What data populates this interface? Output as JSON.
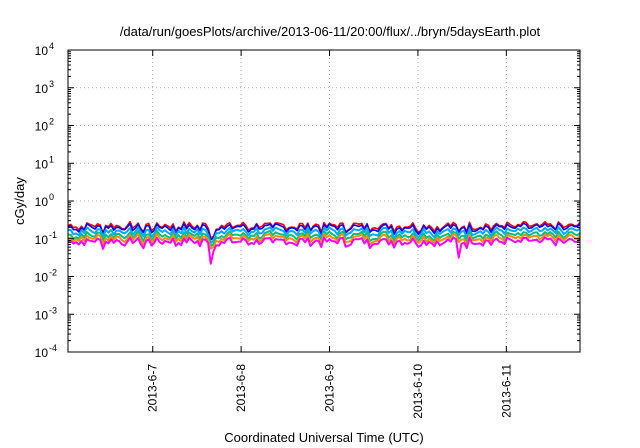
{
  "chart_data": {
    "type": "line",
    "title": "/data/run/goesPlots/archive/2013-06-11/20:00/flux/../bryn/5daysEarth.plot",
    "xlabel": "Coordinated Universal Time (UTC)",
    "ylabel": "cGy/day",
    "y_scale": "log",
    "ylim_exp": [
      -4,
      4
    ],
    "ylim": [
      0.0001,
      10000
    ],
    "y_ticks": [
      {
        "base": "10",
        "exp": "-4"
      },
      {
        "base": "10",
        "exp": "-3"
      },
      {
        "base": "10",
        "exp": "-2"
      },
      {
        "base": "10",
        "exp": "-1"
      },
      {
        "base": "10",
        "exp": "0"
      },
      {
        "base": "10",
        "exp": "1"
      },
      {
        "base": "10",
        "exp": "2"
      },
      {
        "base": "10",
        "exp": "3"
      },
      {
        "base": "10",
        "exp": "4"
      }
    ],
    "xlim": [
      "2013-06-06 01:00",
      "2013-06-11 20:00"
    ],
    "x_ticks": [
      {
        "label": "2013-6-7",
        "day": 1
      },
      {
        "label": "2013-6-8",
        "day": 2
      },
      {
        "label": "2013-6-9",
        "day": 3
      },
      {
        "label": "2013-6-10",
        "day": 4
      },
      {
        "label": "2013-6-11",
        "day": 5
      }
    ],
    "grid": true,
    "legend": "none",
    "series": [
      {
        "color": "#ff0000",
        "level": 0.22,
        "values_note": ""
      },
      {
        "color": "#0000ff",
        "level": 0.2
      },
      {
        "color": "#00aaff",
        "level": 0.16
      },
      {
        "color": "#00c080",
        "level": 0.125
      },
      {
        "color": "#ff8c00",
        "level": 0.105
      },
      {
        "color": "#ff00ff",
        "level": 0.085
      }
    ]
  }
}
